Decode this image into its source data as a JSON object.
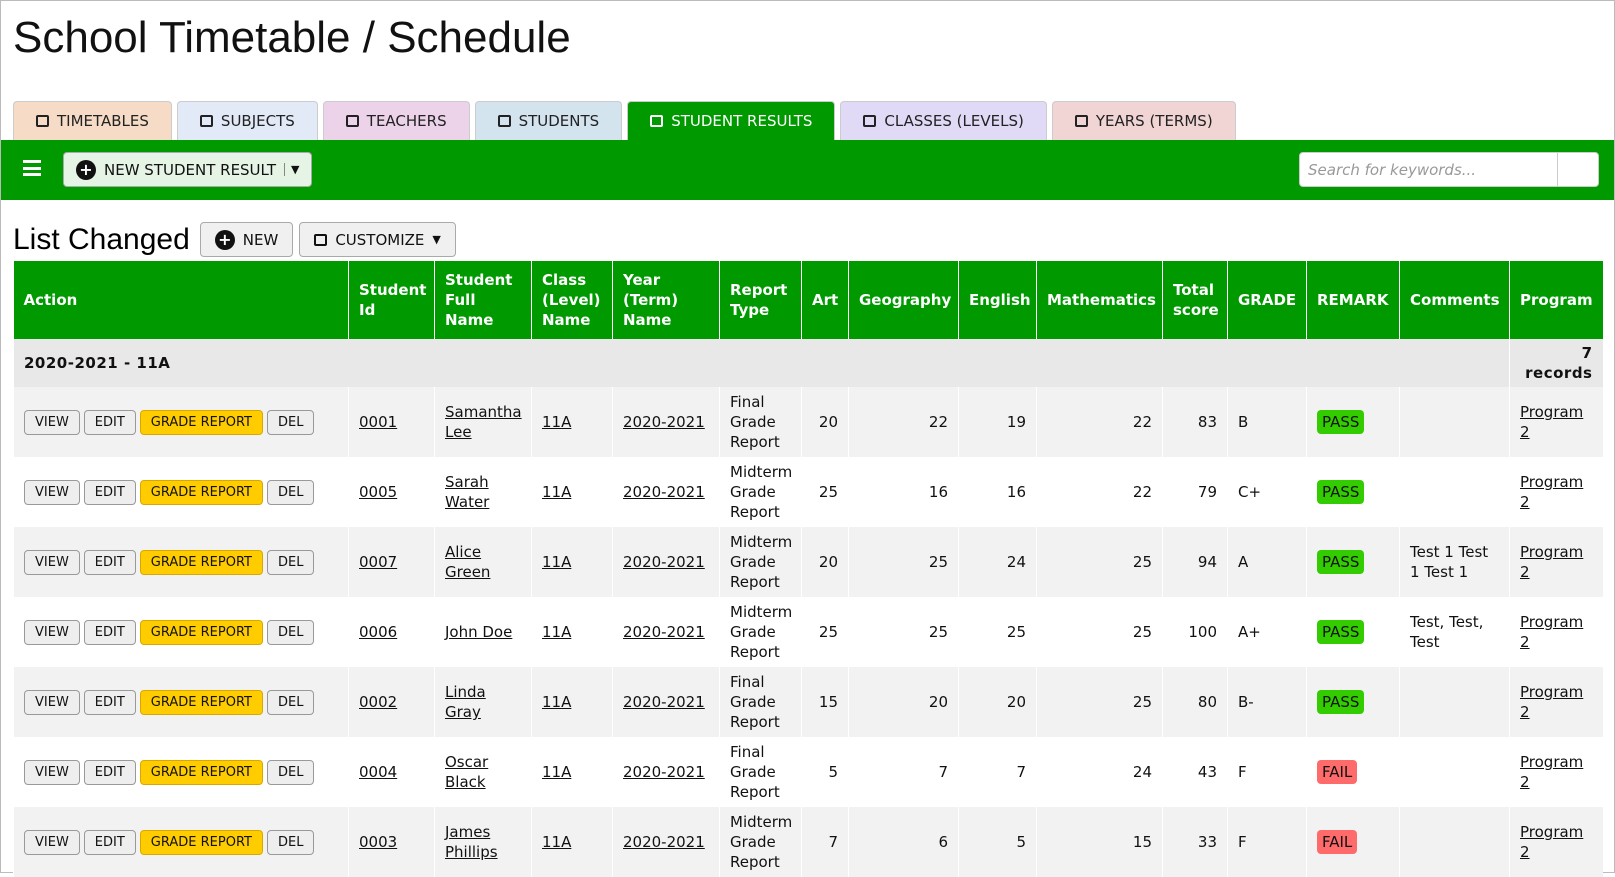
{
  "header": {
    "title": "School Timetable / Schedule"
  },
  "tabs": [
    {
      "label": "TIMETABLES",
      "color": "#f6dcc6"
    },
    {
      "label": "SUBJECTS",
      "color": "#e2e9f7"
    },
    {
      "label": "TEACHERS",
      "color": "#ecd3e9"
    },
    {
      "label": "STUDENTS",
      "color": "#d3e4ef"
    },
    {
      "label": "STUDENT RESULTS",
      "color": "#009a00",
      "active": true
    },
    {
      "label": "CLASSES (LEVELS)",
      "color": "#e1daf6"
    },
    {
      "label": "YEARS (TERMS)",
      "color": "#f1d4d4"
    }
  ],
  "toolbar": {
    "add_button": "NEW STUDENT RESULT",
    "search_placeholder": "Search for keywords..."
  },
  "list": {
    "title": "List Changed",
    "new_button": "NEW",
    "customize_button": "CUSTOMIZE"
  },
  "table": {
    "headers": [
      "Action",
      "Student Id",
      "Student Full Name",
      "Class (Level) Name",
      "Year (Term) Name",
      "Report Type",
      "Art",
      "Geography",
      "English",
      "Mathematics",
      "Total score",
      "GRADE",
      "REMARK",
      "Comments",
      "Program"
    ],
    "group": "2020-2021 - 11A",
    "record_count": "7 records",
    "actions": [
      "VIEW",
      "EDIT",
      "GRADE REPORT",
      "DEL"
    ],
    "rows": [
      {
        "id": "0001",
        "name": "Samantha Lee",
        "class": "11A",
        "year": "2020-2021",
        "report_type": "Final Grade Report",
        "art": 20,
        "geography": 22,
        "english": 19,
        "mathematics": 22,
        "total": 83,
        "grade": "B",
        "remark": "PASS",
        "remark_color": "#33cc00",
        "comments": "",
        "program": "Program 2"
      },
      {
        "id": "0005",
        "name": "Sarah Water",
        "class": "11A",
        "year": "2020-2021",
        "report_type": "Midterm Grade Report",
        "art": 25,
        "geography": 16,
        "english": 16,
        "mathematics": 22,
        "total": 79,
        "grade": "C+",
        "remark": "PASS",
        "remark_color": "#33cc00",
        "comments": "",
        "program": "Program 2"
      },
      {
        "id": "0007",
        "name": "Alice Green",
        "class": "11A",
        "year": "2020-2021",
        "report_type": "Midterm Grade Report",
        "art": 20,
        "geography": 25,
        "english": 24,
        "mathematics": 25,
        "total": 94,
        "grade": "A",
        "remark": "PASS",
        "remark_color": "#33cc00",
        "comments": "Test 1 Test 1 Test 1",
        "program": "Program 2"
      },
      {
        "id": "0006",
        "name": "John Doe",
        "class": "11A",
        "year": "2020-2021",
        "report_type": "Midterm Grade Report",
        "art": 25,
        "geography": 25,
        "english": 25,
        "mathematics": 25,
        "total": 100,
        "grade": "A+",
        "remark": "PASS",
        "remark_color": "#33cc00",
        "comments": "Test, Test, Test",
        "program": "Program 2"
      },
      {
        "id": "0002",
        "name": "Linda Gray",
        "class": "11A",
        "year": "2020-2021",
        "report_type": "Final Grade Report",
        "art": 15,
        "geography": 20,
        "english": 20,
        "mathematics": 25,
        "total": 80,
        "grade": "B-",
        "remark": "PASS",
        "remark_color": "#33cc00",
        "comments": "",
        "program": "Program 2"
      },
      {
        "id": "0004",
        "name": "Oscar Black",
        "class": "11A",
        "year": "2020-2021",
        "report_type": "Final Grade Report",
        "art": 5,
        "geography": 7,
        "english": 7,
        "mathematics": 24,
        "total": 43,
        "grade": "F",
        "remark": "FAIL",
        "remark_color": "#ff6b6b",
        "comments": "",
        "program": "Program 2"
      },
      {
        "id": "0003",
        "name": "James Phillips",
        "class": "11A",
        "year": "2020-2021",
        "report_type": "Midterm Grade Report",
        "art": 7,
        "geography": 6,
        "english": 5,
        "mathematics": 15,
        "total": 33,
        "grade": "F",
        "remark": "FAIL",
        "remark_color": "#ff6b6b",
        "comments": "",
        "program": "Program 2"
      }
    ]
  }
}
